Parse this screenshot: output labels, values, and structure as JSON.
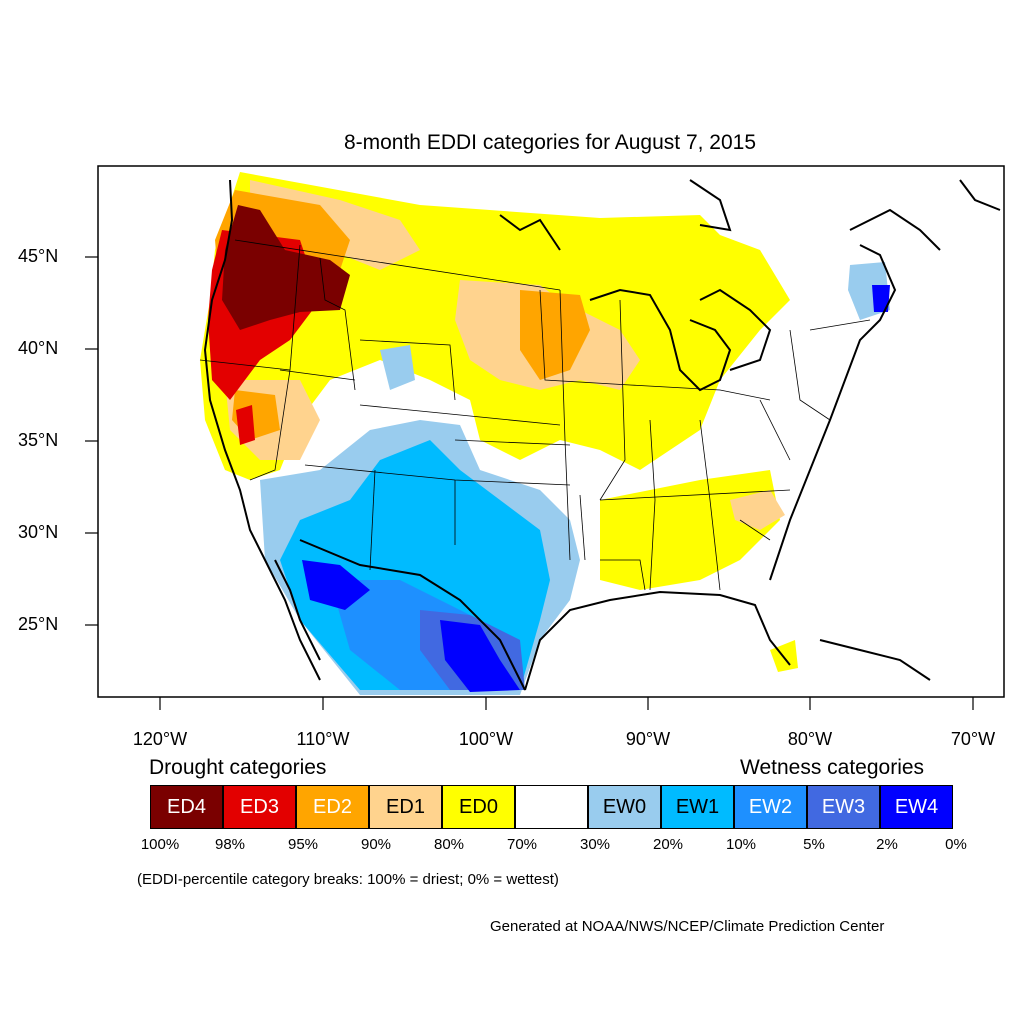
{
  "title": "8-month EDDI categories for August 7, 2015",
  "lat_labels": [
    "45°N",
    "40°N",
    "35°N",
    "30°N",
    "25°N"
  ],
  "lon_labels": [
    "120°W",
    "110°W",
    "100°W",
    "90°W",
    "80°W",
    "70°W"
  ],
  "legend": {
    "drought_heading": "Drought categories",
    "wetness_heading": "Wetness categories",
    "categories": [
      {
        "label": "ED4",
        "color": "#7a0000",
        "text_color": "#ffffff"
      },
      {
        "label": "ED3",
        "color": "#e30000",
        "text_color": "#ffffff"
      },
      {
        "label": "ED2",
        "color": "#ffa500",
        "text_color": "#ffffff"
      },
      {
        "label": "ED1",
        "color": "#ffd38e",
        "text_color": "#000000"
      },
      {
        "label": "ED0",
        "color": "#ffff00",
        "text_color": "#000000"
      },
      {
        "label": "",
        "color": "#ffffff",
        "text_color": "#000000"
      },
      {
        "label": "EW0",
        "color": "#99ccee",
        "text_color": "#000000"
      },
      {
        "label": "EW1",
        "color": "#00bbff",
        "text_color": "#000000"
      },
      {
        "label": "EW2",
        "color": "#1e90ff",
        "text_color": "#ffffff"
      },
      {
        "label": "EW3",
        "color": "#4169e1",
        "text_color": "#ffffff"
      },
      {
        "label": "EW4",
        "color": "#0000ff",
        "text_color": "#ffffff"
      }
    ],
    "breaks": [
      "100%",
      "98%",
      "95%",
      "90%",
      "80%",
      "70%",
      "30%",
      "20%",
      "10%",
      "5%",
      "2%",
      "0%"
    ]
  },
  "note": "(EDDI-percentile category breaks: 100% = driest; 0% = wettest)",
  "credit": "Generated at NOAA/NWS/NCEP/Climate Prediction Center"
}
